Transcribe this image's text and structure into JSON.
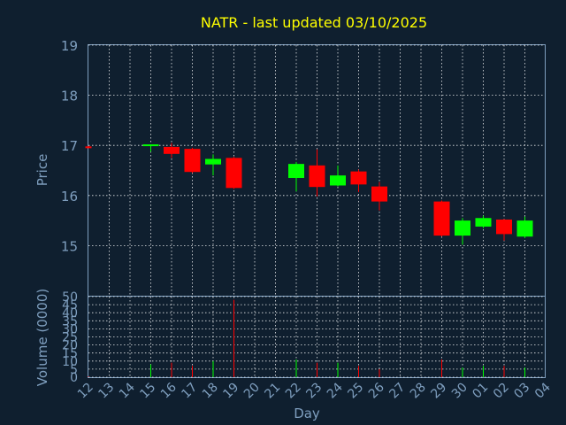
{
  "chart_data": {
    "type": "candlestick",
    "title": "NATR - last updated 03/10/2025",
    "price_panel": {
      "ylabel": "Price",
      "ylim": [
        14.0,
        19.0
      ],
      "yticks": [
        "15",
        "16",
        "17",
        "18",
        "19"
      ],
      "grid": true
    },
    "volume_panel": {
      "ylabel": "Volume (0000)",
      "ylim": [
        0,
        50
      ],
      "yticks": [
        "0",
        "5",
        "10",
        "15",
        "20",
        "25",
        "30",
        "35",
        "40",
        "45",
        "50"
      ],
      "grid": true
    },
    "xlabel": "Day",
    "xticks": [
      "12",
      "13",
      "14",
      "15",
      "16",
      "17",
      "18",
      "19",
      "20",
      "21",
      "22",
      "23",
      "24",
      "25",
      "26",
      "27",
      "28",
      "29",
      "30",
      "01",
      "02",
      "03",
      "04"
    ],
    "colors": {
      "up": "#00ff00",
      "down": "#ff0000",
      "title": "#ffff00",
      "axis": "#7f9fbf",
      "background": "#0f1f2f",
      "grid": "#ffffff"
    },
    "candles": [
      {
        "x": 0,
        "open": 16.98,
        "high": 16.99,
        "low": 16.97,
        "close": 16.97,
        "volume": 0.5
      },
      {
        "x": 3,
        "open": 16.99,
        "high": 17.02,
        "low": 16.87,
        "close": 17.02,
        "volume": 8
      },
      {
        "x": 4,
        "open": 16.97,
        "high": 17.05,
        "low": 16.75,
        "close": 16.83,
        "volume": 9
      },
      {
        "x": 5,
        "open": 16.93,
        "high": 16.95,
        "low": 16.45,
        "close": 16.47,
        "volume": 7
      },
      {
        "x": 6,
        "open": 16.62,
        "high": 16.82,
        "low": 16.4,
        "close": 16.73,
        "volume": 10
      },
      {
        "x": 7,
        "open": 16.75,
        "high": 16.77,
        "low": 16.13,
        "close": 16.15,
        "volume": 48
      },
      {
        "x": 10,
        "open": 16.35,
        "high": 16.67,
        "low": 16.08,
        "close": 16.63,
        "volume": 11
      },
      {
        "x": 11,
        "open": 16.6,
        "high": 16.92,
        "low": 15.98,
        "close": 16.17,
        "volume": 9
      },
      {
        "x": 12,
        "open": 16.2,
        "high": 16.6,
        "low": 16.18,
        "close": 16.4,
        "volume": 9
      },
      {
        "x": 13,
        "open": 16.48,
        "high": 16.52,
        "low": 16.07,
        "close": 16.22,
        "volume": 7
      },
      {
        "x": 14,
        "open": 16.18,
        "high": 16.27,
        "low": 15.7,
        "close": 15.88,
        "volume": 5
      },
      {
        "x": 17,
        "open": 15.88,
        "high": 15.9,
        "low": 15.18,
        "close": 15.2,
        "volume": 11
      },
      {
        "x": 18,
        "open": 15.2,
        "high": 15.55,
        "low": 15.02,
        "close": 15.5,
        "volume": 6
      },
      {
        "x": 19,
        "open": 15.38,
        "high": 15.6,
        "low": 15.35,
        "close": 15.55,
        "volume": 7
      },
      {
        "x": 20,
        "open": 15.52,
        "high": 15.53,
        "low": 15.1,
        "close": 15.23,
        "volume": 7
      },
      {
        "x": 21,
        "open": 15.18,
        "high": 15.58,
        "low": 15.15,
        "close": 15.5,
        "volume": 6
      }
    ]
  }
}
